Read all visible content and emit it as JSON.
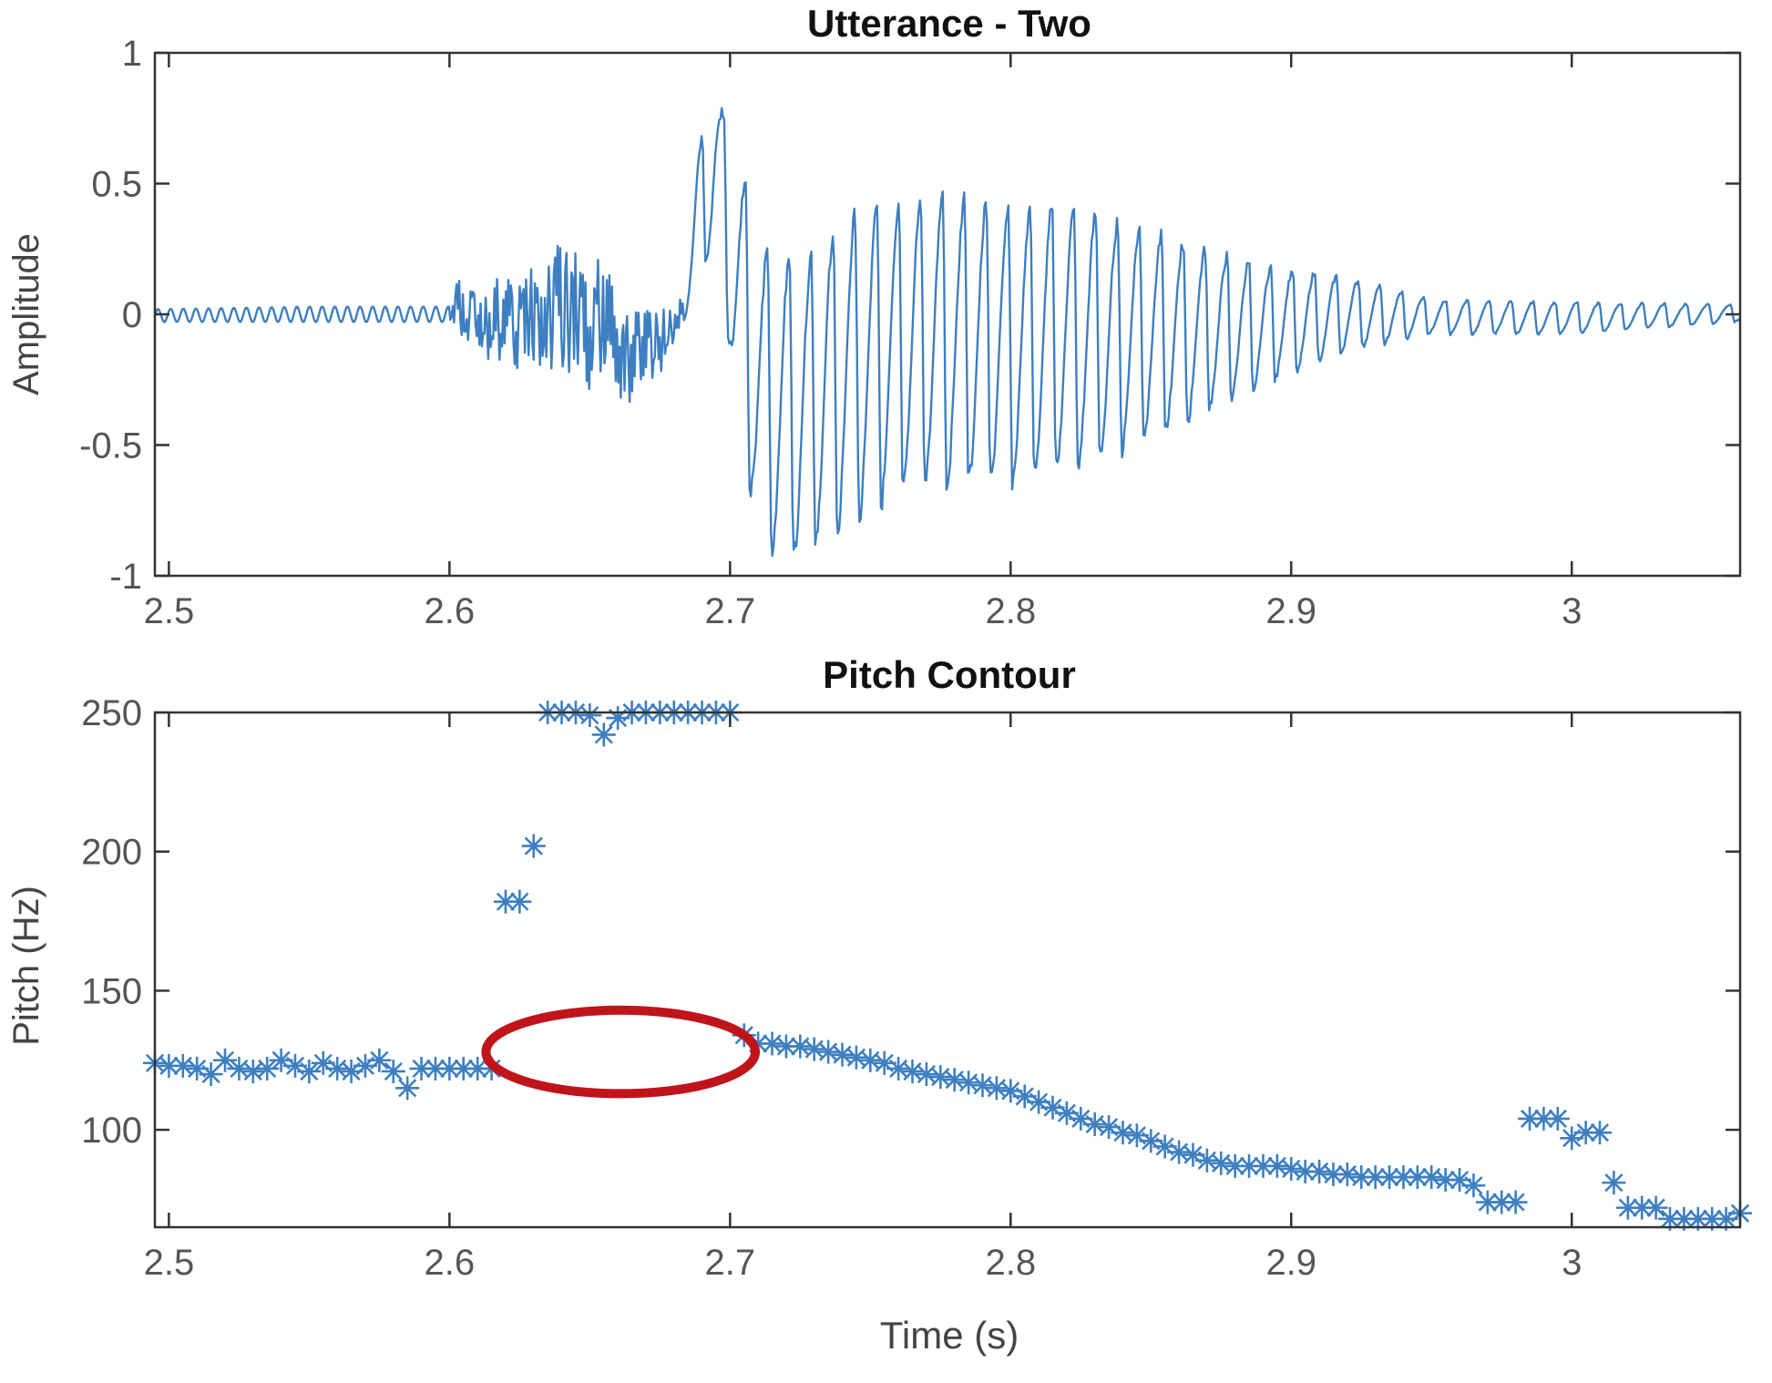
{
  "colors": {
    "series": "#3d7fc1",
    "axes": "#333333",
    "highlight": "#c0141b"
  },
  "chart_data": [
    {
      "type": "line",
      "title": "Utterance - Two",
      "xlabel": "",
      "ylabel": "Amplitude",
      "xlim": [
        2.495,
        3.06
      ],
      "ylim": [
        -1,
        1
      ],
      "x_ticks": [
        2.5,
        2.6,
        2.7,
        2.8,
        2.9,
        3
      ],
      "x_tick_labels": [
        "2.5",
        "2.6",
        "2.7",
        "2.8",
        "2.9",
        "3"
      ],
      "y_ticks": [
        1,
        0.5,
        0,
        -0.5,
        -1
      ],
      "y_tick_labels": [
        "1",
        "0.5",
        "0",
        "-0.5",
        "-1"
      ],
      "grid": false,
      "envelope": [
        {
          "t": 2.495,
          "hi": 0.02,
          "lo": -0.03
        },
        {
          "t": 2.55,
          "hi": 0.03,
          "lo": -0.03
        },
        {
          "t": 2.601,
          "hi": 0.03,
          "lo": -0.03
        },
        {
          "t": 2.602,
          "hi": 0.17,
          "lo": -0.12
        },
        {
          "t": 2.615,
          "hi": 0.14,
          "lo": -0.18
        },
        {
          "t": 2.63,
          "hi": 0.22,
          "lo": -0.28
        },
        {
          "t": 2.645,
          "hi": 0.33,
          "lo": -0.3
        },
        {
          "t": 2.655,
          "hi": 0.2,
          "lo": -0.3
        },
        {
          "t": 2.663,
          "hi": 0.05,
          "lo": -0.36
        },
        {
          "t": 2.672,
          "hi": 0.08,
          "lo": -0.3
        },
        {
          "t": 2.68,
          "hi": 0.02,
          "lo": -0.12
        },
        {
          "t": 2.688,
          "hi": 0.62,
          "lo": 0.05
        },
        {
          "t": 2.695,
          "hi": 0.9,
          "lo": 0.3
        },
        {
          "t": 2.702,
          "hi": 0.65,
          "lo": -0.4
        },
        {
          "t": 2.712,
          "hi": 0.3,
          "lo": -0.98
        },
        {
          "t": 2.725,
          "hi": 0.23,
          "lo": -0.98
        },
        {
          "t": 2.74,
          "hi": 0.4,
          "lo": -0.85
        },
        {
          "t": 2.76,
          "hi": 0.47,
          "lo": -0.72
        },
        {
          "t": 2.78,
          "hi": 0.48,
          "lo": -0.68
        },
        {
          "t": 2.8,
          "hi": 0.45,
          "lo": -0.68
        },
        {
          "t": 2.83,
          "hi": 0.42,
          "lo": -0.6
        },
        {
          "t": 2.86,
          "hi": 0.3,
          "lo": -0.45
        },
        {
          "t": 2.89,
          "hi": 0.2,
          "lo": -0.28
        },
        {
          "t": 2.92,
          "hi": 0.15,
          "lo": -0.15
        },
        {
          "t": 2.95,
          "hi": 0.06,
          "lo": -0.08
        },
        {
          "t": 3.0,
          "hi": 0.05,
          "lo": -0.08
        },
        {
          "t": 3.06,
          "hi": 0.04,
          "lo": -0.03
        }
      ]
    },
    {
      "type": "scatter",
      "title": "Pitch Contour",
      "xlabel": "Time (s)",
      "ylabel": "Pitch (Hz)",
      "xlim": [
        2.495,
        3.06
      ],
      "ylim": [
        65,
        250
      ],
      "x_ticks": [
        2.5,
        2.6,
        2.7,
        2.8,
        2.9,
        3
      ],
      "x_tick_labels": [
        "2.5",
        "2.6",
        "2.7",
        "2.8",
        "2.9",
        "3"
      ],
      "y_ticks": [
        250,
        200,
        150,
        100
      ],
      "y_tick_labels": [
        "250",
        "200",
        "150",
        "100"
      ],
      "grid": false,
      "marker": "*",
      "series": [
        {
          "x": [
            2.495,
            2.5,
            2.505,
            2.51,
            2.515,
            2.52,
            2.525,
            2.53,
            2.535,
            2.54,
            2.545,
            2.55,
            2.555,
            2.56,
            2.565,
            2.57,
            2.575,
            2.58,
            2.585,
            2.59,
            2.595,
            2.6,
            2.605,
            2.61,
            2.615,
            2.62,
            2.625,
            2.63,
            2.635,
            2.64,
            2.645,
            2.65,
            2.655,
            2.66,
            2.665,
            2.67,
            2.675,
            2.68,
            2.685,
            2.69,
            2.695,
            2.7,
            2.705,
            2.71,
            2.715,
            2.72,
            2.725,
            2.73,
            2.735,
            2.74,
            2.745,
            2.75,
            2.755,
            2.76,
            2.765,
            2.77,
            2.775,
            2.78,
            2.785,
            2.79,
            2.795,
            2.8,
            2.805,
            2.81,
            2.815,
            2.82,
            2.825,
            2.83,
            2.835,
            2.84,
            2.845,
            2.85,
            2.855,
            2.86,
            2.865,
            2.87,
            2.875,
            2.88,
            2.885,
            2.89,
            2.895,
            2.9,
            2.905,
            2.91,
            2.915,
            2.92,
            2.925,
            2.93,
            2.935,
            2.94,
            2.945,
            2.95,
            2.955,
            2.96,
            2.965,
            2.97,
            2.975,
            2.98,
            2.985,
            2.99,
            2.995,
            3.0,
            3.005,
            3.01,
            3.015,
            3.02,
            3.025,
            3.03,
            3.035,
            3.04,
            3.045,
            3.05,
            3.055,
            3.06
          ],
          "y": [
            124,
            123,
            123,
            122,
            120,
            125,
            122,
            121,
            122,
            125,
            123,
            121,
            124,
            122,
            121,
            123,
            125,
            121,
            115,
            122,
            122,
            122,
            122,
            122,
            122,
            182,
            182,
            202,
            250,
            250,
            250,
            249,
            242,
            248,
            250,
            250,
            250,
            250,
            250,
            250,
            250,
            250,
            134,
            131,
            131,
            130,
            130,
            129,
            128,
            127,
            126,
            125,
            124,
            122,
            121,
            120,
            119,
            118,
            117,
            116,
            115,
            114,
            112,
            110,
            108,
            106,
            104,
            102,
            101,
            99,
            98,
            96,
            94,
            92,
            91,
            89,
            88,
            87,
            87,
            87,
            87,
            86,
            85,
            85,
            84,
            84,
            83,
            83,
            83,
            83,
            83,
            83,
            82,
            82,
            80,
            74,
            74,
            74,
            104,
            104,
            104,
            97,
            99,
            99,
            81,
            72,
            72,
            72,
            68,
            68,
            68,
            68,
            68,
            70
          ]
        }
      ],
      "annotations": [
        {
          "shape": "ellipse",
          "color": "#c0141b",
          "center_x": 2.661,
          "center_y": 128,
          "rx_data": 0.048,
          "ry_data": 15
        }
      ]
    }
  ]
}
